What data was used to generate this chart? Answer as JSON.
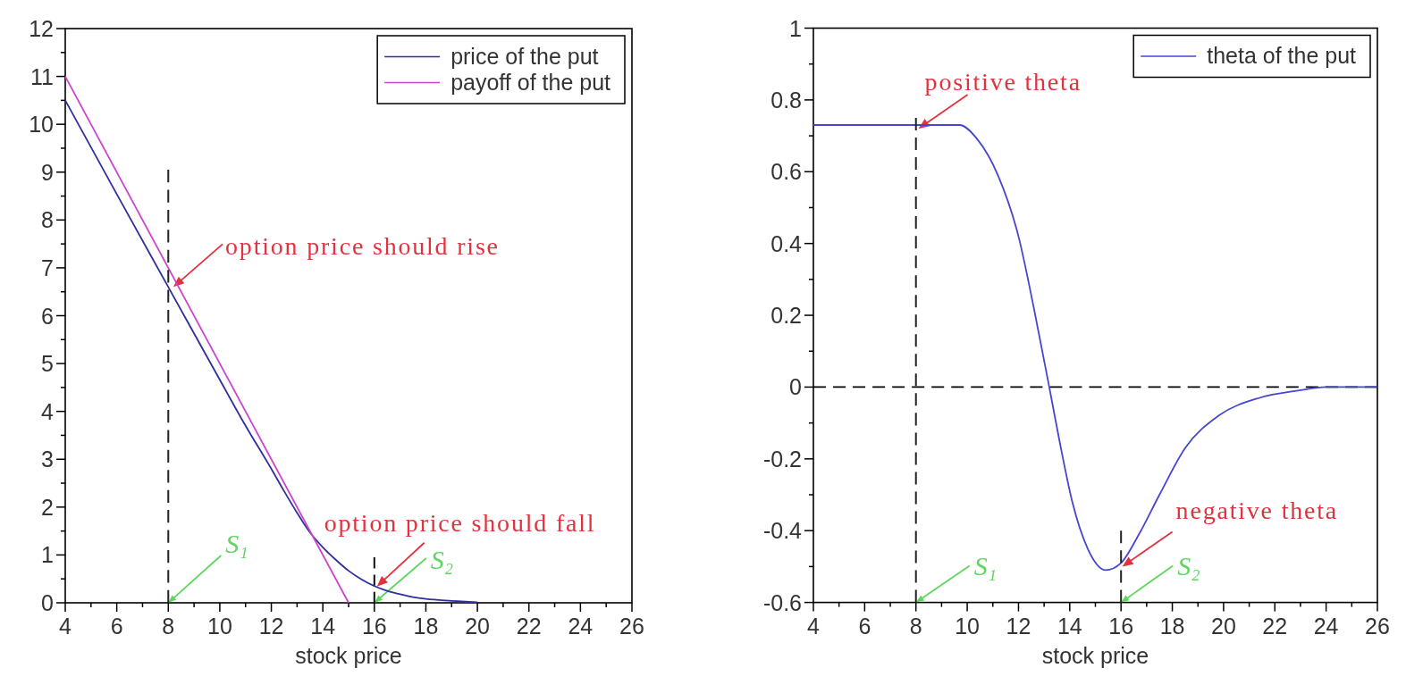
{
  "chart_data": [
    {
      "type": "line",
      "xlabel": "stock price",
      "xlim": [
        4,
        26
      ],
      "ylim": [
        0,
        12
      ],
      "xticks": [
        4,
        {
          "value": 5,
          "label": null
        },
        6,
        {
          "value": 7,
          "label": null
        },
        8,
        {
          "value": 9,
          "label": null
        },
        10,
        {
          "value": 11,
          "label": null
        },
        12,
        {
          "value": 13,
          "label": null
        },
        14,
        {
          "value": 15,
          "label": null
        },
        16,
        {
          "value": 17,
          "label": null
        },
        18,
        {
          "value": 19,
          "label": null
        },
        20,
        {
          "value": 21,
          "label": null
        },
        22,
        {
          "value": 23,
          "label": null
        },
        24,
        {
          "value": 25,
          "label": null
        },
        26
      ],
      "yticks": [
        0,
        {
          "value": 0.5,
          "label": null
        },
        1,
        {
          "value": 1.5,
          "label": null
        },
        2,
        {
          "value": 2.5,
          "label": null
        },
        3,
        {
          "value": 3.5,
          "label": null
        },
        4,
        {
          "value": 4.5,
          "label": null
        },
        5,
        {
          "value": 5.5,
          "label": null
        },
        6,
        {
          "value": 6.5,
          "label": null
        },
        7,
        {
          "value": 7.5,
          "label": null
        },
        8,
        {
          "value": 8.5,
          "label": null
        },
        9,
        {
          "value": 9.5,
          "label": null
        },
        10,
        {
          "value": 10.5,
          "label": null
        },
        11,
        {
          "value": 11.5,
          "label": null
        },
        12
      ],
      "legend": "top right",
      "series": [
        {
          "name": "price of the put",
          "color": "#2f2f9e",
          "x": [
            4,
            6,
            8,
            10,
            11,
            12,
            12.5,
            13,
            13.5,
            14,
            14.5,
            15,
            15.5,
            16,
            16.5,
            17,
            17.5,
            18,
            19,
            20
          ],
          "values": [
            10.5,
            8.54,
            6.6,
            4.66,
            3.7,
            2.8,
            2.33,
            1.88,
            1.47,
            1.16,
            0.9,
            0.67,
            0.49,
            0.35,
            0.25,
            0.18,
            0.12,
            0.08,
            0.04,
            0.01
          ]
        },
        {
          "name": "payoff of the put",
          "color": "#cc44cc",
          "x": [
            4,
            15
          ],
          "values": [
            11,
            0
          ]
        },
        {
          "color": "#222222",
          "line_style": "dashed",
          "x": [
            8,
            8,
            8
          ],
          "values": [
            0,
            6.6,
            9.05
          ]
        },
        {
          "color": "#101010",
          "line_style": "dashed",
          "x": [
            16,
            16
          ],
          "values": [
            0,
            0.95
          ]
        }
      ],
      "annotations": [
        {
          "text": "option price should rise",
          "x": 8.2,
          "y": 6.6
        },
        {
          "text": "option price should fall",
          "x": 16.1,
          "y": 0.34
        },
        {
          "text": "S₁",
          "x": 8,
          "y": 0
        },
        {
          "text": "S₂",
          "x": 16,
          "y": 0
        }
      ]
    },
    {
      "type": "line",
      "xlabel": "stock price",
      "xlim": [
        4,
        26
      ],
      "ylim": [
        -0.6,
        1
      ],
      "xticks": [
        4,
        {
          "value": 5,
          "label": null
        },
        6,
        {
          "value": 7,
          "label": null
        },
        8,
        {
          "value": 9,
          "label": null
        },
        10,
        {
          "value": 11,
          "label": null
        },
        12,
        {
          "value": 13,
          "label": null
        },
        14,
        {
          "value": 15,
          "label": null
        },
        16,
        {
          "value": 17,
          "label": null
        },
        18,
        {
          "value": 19,
          "label": null
        },
        20,
        {
          "value": 21,
          "label": null
        },
        22,
        {
          "value": 23,
          "label": null
        },
        24,
        {
          "value": 25,
          "label": null
        },
        26
      ],
      "yticks": [
        -0.6,
        {
          "value": -0.5,
          "label": null
        },
        -0.4,
        {
          "value": -0.3,
          "label": null
        },
        -0.2,
        {
          "value": -0.1,
          "label": null
        },
        0,
        {
          "value": 0.1,
          "label": null
        },
        0.2,
        {
          "value": 0.3,
          "label": null
        },
        0.4,
        {
          "value": 0.5,
          "label": null
        },
        0.6,
        {
          "value": 0.7,
          "label": null
        },
        0.8,
        {
          "value": 0.9,
          "label": null
        },
        1
      ],
      "legend": "top right",
      "ref_lines": [
        {
          "axis": "y",
          "value": 0,
          "color": "#000000",
          "line_style": "dashed"
        }
      ],
      "series": [
        {
          "name": "theta of the put",
          "color": "#4646d2",
          "x": [
            4,
            8,
            9,
            9.7,
            10.4,
            11.2,
            12,
            12.6,
            13.2,
            13.6,
            14.1,
            14.7,
            15.4,
            16,
            16.7,
            17.5,
            18.5,
            19.8,
            21.4,
            22.9,
            24,
            26
          ],
          "values": [
            0.73,
            0.73,
            0.73,
            0.73,
            0.69,
            0.59,
            0.42,
            0.22,
            0,
            -0.15,
            -0.32,
            -0.45,
            -0.51,
            -0.49,
            -0.41,
            -0.3,
            -0.17,
            -0.08,
            -0.03,
            -0.01,
            0,
            0
          ]
        },
        {
          "color": "#222222",
          "line_style": "dashed",
          "x": [
            8,
            8
          ],
          "values": [
            -0.6,
            0.75
          ]
        },
        {
          "color": "#222222",
          "line_style": "dashed",
          "x": [
            16,
            16
          ],
          "values": [
            -0.6,
            -0.4
          ]
        }
      ],
      "annotations": [
        {
          "text": "positive theta",
          "x": 8.1,
          "y": 0.72
        },
        {
          "text": "negative theta",
          "x": 16.05,
          "y": -0.5
        },
        {
          "text": "S₁",
          "x": 8,
          "y": -0.6
        },
        {
          "text": "S₂",
          "x": 16,
          "y": -0.6
        }
      ]
    }
  ]
}
